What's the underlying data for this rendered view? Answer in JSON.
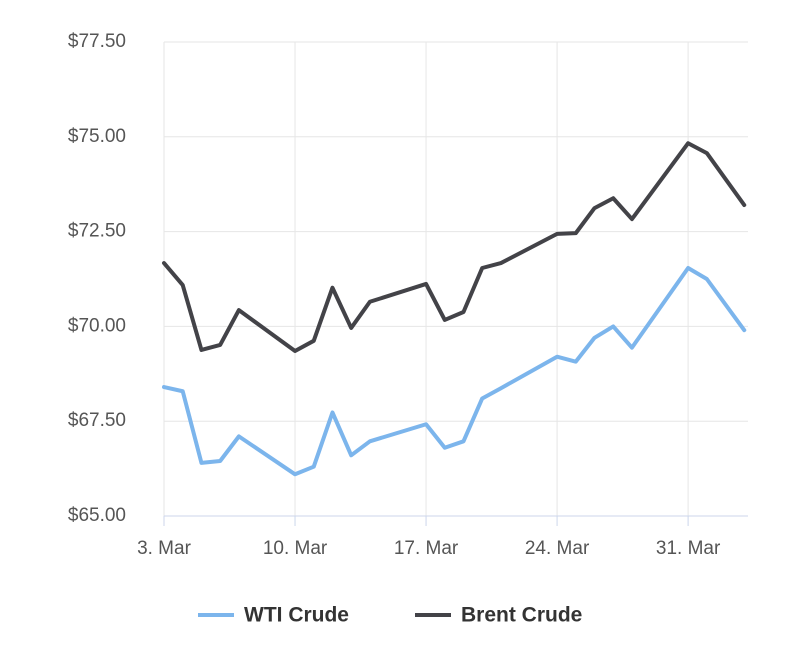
{
  "chart_data": {
    "type": "line",
    "x": [
      3,
      4,
      5,
      6,
      7,
      10,
      11,
      12,
      13,
      14,
      17,
      18,
      19,
      20,
      21,
      24,
      25,
      26,
      27,
      28,
      31,
      32,
      34
    ],
    "xlim": [
      3,
      34.2
    ],
    "xticks": [
      {
        "value": 3,
        "label": "3. Mar"
      },
      {
        "value": 10,
        "label": "10. Mar"
      },
      {
        "value": 17,
        "label": "17. Mar"
      },
      {
        "value": 24,
        "label": "24. Mar"
      },
      {
        "value": 31,
        "label": "31. Mar"
      }
    ],
    "ylim": [
      65,
      77.5
    ],
    "yticks": [
      {
        "value": 65,
        "label": "$65.00"
      },
      {
        "value": 67.5,
        "label": "$67.50"
      },
      {
        "value": 70,
        "label": "$70.00"
      },
      {
        "value": 72.5,
        "label": "$72.50"
      },
      {
        "value": 75,
        "label": "$75.00"
      },
      {
        "value": 77.5,
        "label": "$77.50"
      }
    ],
    "grid": true,
    "legend": "bottom",
    "series": [
      {
        "name": "WTI Crude",
        "color": "#7cb5ec",
        "values": [
          68.4,
          68.29,
          66.4,
          66.45,
          67.1,
          66.1,
          66.3,
          67.73,
          66.6,
          66.97,
          67.42,
          66.8,
          66.97,
          68.1,
          68.37,
          69.2,
          69.07,
          69.7,
          70.0,
          69.44,
          71.54,
          71.25,
          69.9
        ]
      },
      {
        "name": "Brent Crude",
        "color": "#434348",
        "values": [
          71.67,
          71.09,
          69.38,
          69.51,
          70.43,
          69.35,
          69.62,
          71.02,
          69.96,
          70.65,
          71.12,
          70.17,
          70.38,
          71.54,
          71.67,
          72.44,
          72.46,
          73.12,
          73.38,
          72.83,
          74.83,
          74.57,
          73.2
        ]
      }
    ]
  }
}
